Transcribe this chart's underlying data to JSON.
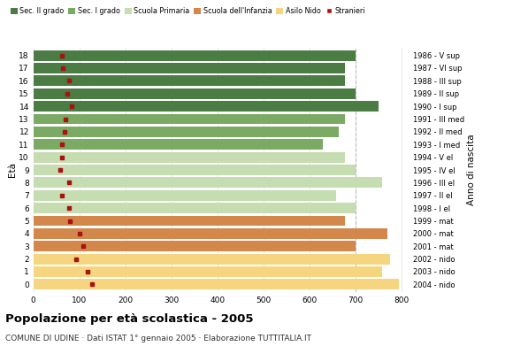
{
  "ages": [
    18,
    17,
    16,
    15,
    14,
    13,
    12,
    11,
    10,
    9,
    8,
    7,
    6,
    5,
    4,
    3,
    2,
    1,
    0
  ],
  "years": [
    "1986 - V sup",
    "1987 - VI sup",
    "1988 - III sup",
    "1989 - II sup",
    "1990 - I sup",
    "1991 - III med",
    "1992 - II med",
    "1993 - I med",
    "1994 - V el",
    "1995 - IV el",
    "1996 - III el",
    "1997 - II el",
    "1998 - I el",
    "1999 - mat",
    "2000 - mat",
    "2001 - mat",
    "2002 - nido",
    "2003 - nido",
    "2004 - nido"
  ],
  "bar_values": [
    700,
    678,
    678,
    700,
    750,
    678,
    665,
    630,
    678,
    700,
    758,
    658,
    700,
    678,
    770,
    700,
    775,
    758,
    795
  ],
  "stranieri": [
    62,
    64,
    78,
    73,
    83,
    70,
    68,
    63,
    63,
    58,
    78,
    63,
    78,
    80,
    100,
    108,
    93,
    118,
    128
  ],
  "bar_colors": [
    "#4a7c44",
    "#4a7c44",
    "#4a7c44",
    "#4a7c44",
    "#4a7c44",
    "#7aaa64",
    "#7aaa64",
    "#7aaa64",
    "#c5ddb0",
    "#c5ddb0",
    "#c5ddb0",
    "#c5ddb0",
    "#c5ddb0",
    "#d4874a",
    "#d4874a",
    "#d4874a",
    "#f5d580",
    "#f5d580",
    "#f5d580"
  ],
  "legend_labels": [
    "Sec. II grado",
    "Sec. I grado",
    "Scuola Primaria",
    "Scuola dell'Infanzia",
    "Asilo Nido",
    "Stranieri"
  ],
  "legend_colors": [
    "#4a7c44",
    "#7aaa64",
    "#c5ddb0",
    "#d4874a",
    "#f5d580",
    "#aa2222"
  ],
  "title": "Popolazione per età scolastica - 2005",
  "subtitle": "COMUNE DI UDINE · Dati ISTAT 1° gennaio 2005 · Elaborazione TUTTITALIA.IT",
  "xlabel_eta": "Età",
  "xlabel_anno": "Anno di nascita",
  "xlim": [
    0,
    820
  ],
  "xticks": [
    0,
    100,
    200,
    300,
    400,
    500,
    600,
    700,
    800
  ],
  "dashed_line_x": 700,
  "background_color": "#ffffff",
  "stranieri_color": "#aa1111"
}
